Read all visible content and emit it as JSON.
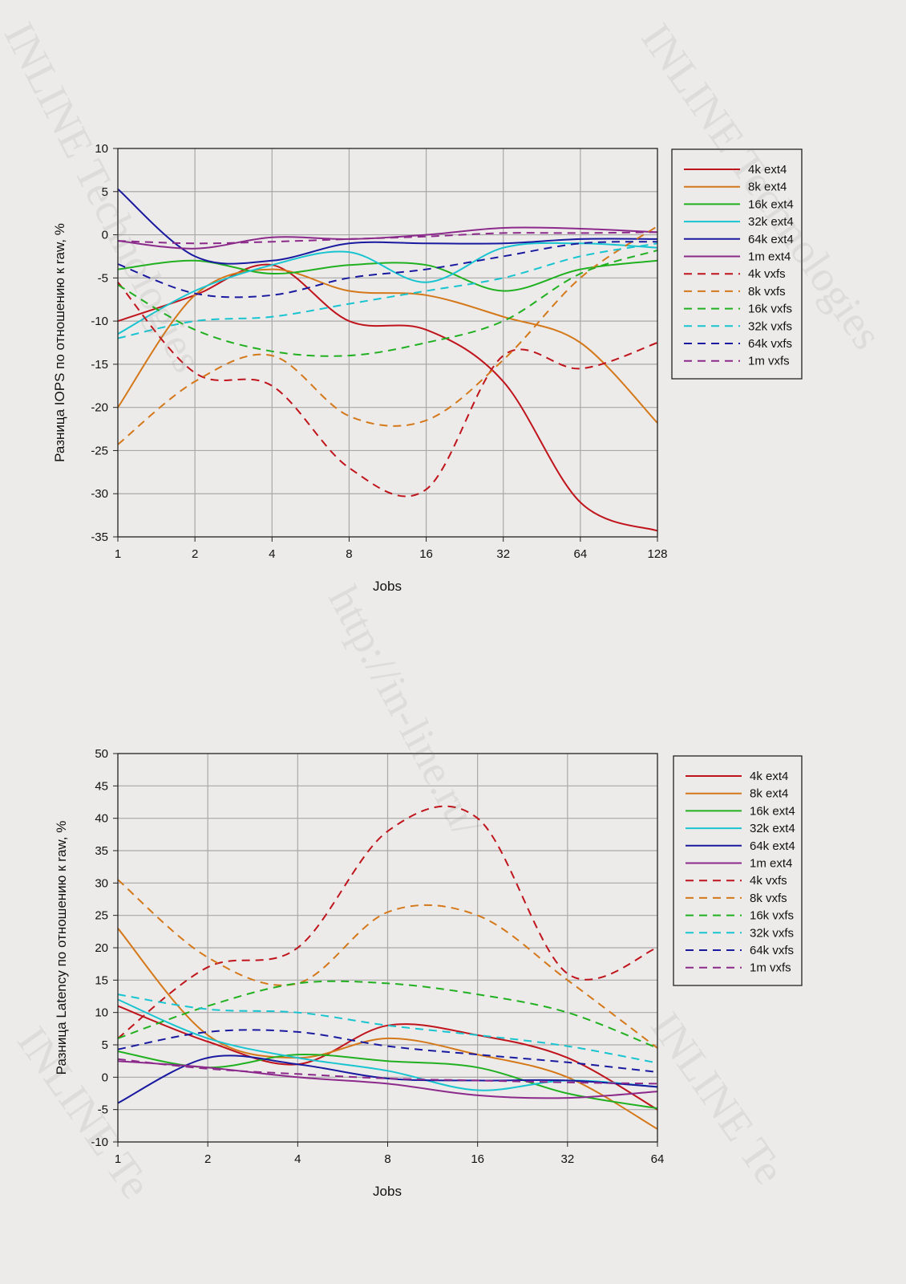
{
  "watermarks": [
    "INLINE Technologies",
    "INLINE Technologies",
    "http://in-line.ru/",
    "INLINE Te",
    "INLINE Te"
  ],
  "charts": [
    {
      "ylabel": "Разница IOPS по отношению к raw, %",
      "xlabel": "Jobs",
      "x_ticks": [
        "1",
        "2",
        "4",
        "8",
        "16",
        "32",
        "64",
        "128"
      ],
      "y_ticks": [
        "10",
        "5",
        "0",
        "-5",
        "-10",
        "-15",
        "-20",
        "-25",
        "-30",
        "-35"
      ]
    },
    {
      "ylabel": "Разница Latency по отношению к raw, %",
      "xlabel": "Jobs",
      "x_ticks": [
        "1",
        "2",
        "4",
        "8",
        "16",
        "32",
        "64"
      ],
      "y_ticks": [
        "50",
        "45",
        "40",
        "35",
        "30",
        "25",
        "20",
        "15",
        "10",
        "5",
        "0",
        "-5",
        "-10"
      ]
    }
  ],
  "chart_data": [
    {
      "type": "line",
      "xlabel": "Jobs",
      "ylabel": "Разница IOPS по отношению к raw, %",
      "x": [
        1,
        2,
        4,
        8,
        16,
        32,
        64,
        128
      ],
      "xscale": "log2",
      "ylim": [
        -35,
        10
      ],
      "grid": true,
      "legend": "right",
      "series": [
        {
          "name": "4k ext4",
          "color": "#c0141c",
          "dash": false,
          "values": [
            -10,
            -7,
            -3.5,
            -10,
            -11,
            -17,
            -31,
            -34.3
          ]
        },
        {
          "name": "8k ext4",
          "color": "#d4781a",
          "dash": false,
          "values": [
            -20,
            -7,
            -4,
            -6.5,
            -7,
            -9.5,
            -12.5,
            -21.8
          ]
        },
        {
          "name": "16k ext4",
          "color": "#20b020",
          "dash": false,
          "values": [
            -4,
            -3,
            -4.5,
            -3.5,
            -3.5,
            -6.5,
            -4,
            -3
          ]
        },
        {
          "name": "32k ext4",
          "color": "#18c4d0",
          "dash": false,
          "values": [
            -11.5,
            -6.5,
            -3.5,
            -2,
            -5.5,
            -1.5,
            -1,
            -1.5
          ]
        },
        {
          "name": "64k ext4",
          "color": "#1a1aa0",
          "dash": false,
          "values": [
            5.3,
            -2.5,
            -3,
            -1,
            -1,
            -1,
            -0.5,
            -0.5
          ]
        },
        {
          "name": "1m ext4",
          "color": "#8c2a8c",
          "dash": false,
          "values": [
            -0.7,
            -1.6,
            -0.3,
            -0.5,
            0,
            0.8,
            0.7,
            0.3
          ]
        },
        {
          "name": "4k vxfs",
          "color": "#c0141c",
          "dash": true,
          "values": [
            -5.5,
            -16,
            -17.5,
            -27,
            -29.5,
            -14,
            -15.5,
            -12.5
          ]
        },
        {
          "name": "8k vxfs",
          "color": "#d4781a",
          "dash": true,
          "values": [
            -24.3,
            -17,
            -14,
            -21,
            -21.5,
            -14.5,
            -5,
            1
          ]
        },
        {
          "name": "16k vxfs",
          "color": "#20b020",
          "dash": true,
          "values": [
            -5.8,
            -11,
            -13.5,
            -14,
            -12.5,
            -10,
            -4.5,
            -1.8
          ]
        },
        {
          "name": "32k vxfs",
          "color": "#18c4d0",
          "dash": true,
          "values": [
            -12,
            -10,
            -9.5,
            -8,
            -6.5,
            -5,
            -2.5,
            -1
          ]
        },
        {
          "name": "64k vxfs",
          "color": "#1a1aa0",
          "dash": true,
          "values": [
            -3.4,
            -6.8,
            -7,
            -5,
            -4,
            -2.5,
            -1,
            -0.8
          ]
        },
        {
          "name": "1m vxfs",
          "color": "#8c2a8c",
          "dash": true,
          "values": [
            -0.7,
            -1,
            -0.8,
            -0.5,
            -0.2,
            0.2,
            0.2,
            0.3
          ]
        }
      ]
    },
    {
      "type": "line",
      "xlabel": "Jobs",
      "ylabel": "Разница Latency по отношению к raw, %",
      "x": [
        1,
        2,
        4,
        8,
        16,
        32,
        64
      ],
      "xscale": "log2",
      "ylim": [
        -10,
        50
      ],
      "grid": true,
      "legend": "right",
      "series": [
        {
          "name": "4k ext4",
          "color": "#c0141c",
          "dash": false,
          "values": [
            11,
            5.5,
            2,
            8,
            6.5,
            3,
            -5
          ]
        },
        {
          "name": "8k ext4",
          "color": "#d4781a",
          "dash": false,
          "values": [
            23,
            6.5,
            3,
            6,
            3.5,
            0,
            -8
          ]
        },
        {
          "name": "16k ext4",
          "color": "#20b020",
          "dash": false,
          "values": [
            4,
            1.5,
            3.5,
            2.5,
            1.5,
            -2.5,
            -4.8
          ]
        },
        {
          "name": "32k ext4",
          "color": "#18c4d0",
          "dash": false,
          "values": [
            12,
            6,
            3,
            1,
            -2,
            -0.5,
            -1.5
          ]
        },
        {
          "name": "64k ext4",
          "color": "#1a1aa0",
          "dash": false,
          "values": [
            -4,
            3,
            2,
            -0.2,
            -0.5,
            -0.5,
            -1.5
          ]
        },
        {
          "name": "1m ext4",
          "color": "#8c2a8c",
          "dash": false,
          "values": [
            2.5,
            1.5,
            0,
            -1,
            -2.8,
            -3.2,
            -2.2
          ]
        },
        {
          "name": "4k vxfs",
          "color": "#c0141c",
          "dash": true,
          "values": [
            6,
            17,
            20,
            38,
            40,
            16,
            20
          ]
        },
        {
          "name": "8k vxfs",
          "color": "#d4781a",
          "dash": true,
          "values": [
            30.5,
            18.5,
            14.5,
            25.5,
            25,
            15,
            4.5
          ]
        },
        {
          "name": "16k vxfs",
          "color": "#20b020",
          "dash": true,
          "values": [
            6,
            11,
            14.5,
            14.5,
            12.8,
            10,
            4.5
          ]
        },
        {
          "name": "32k vxfs",
          "color": "#18c4d0",
          "dash": true,
          "values": [
            12.8,
            10.5,
            10,
            8,
            6.5,
            4.8,
            2.2
          ]
        },
        {
          "name": "64k vxfs",
          "color": "#1a1aa0",
          "dash": true,
          "values": [
            4.3,
            7,
            7,
            4.8,
            3.5,
            2.3,
            0.8
          ]
        },
        {
          "name": "1m vxfs",
          "color": "#8c2a8c",
          "dash": true,
          "values": [
            2.8,
            1.3,
            0.5,
            -0.2,
            -0.5,
            -0.8,
            -1
          ]
        }
      ]
    }
  ]
}
